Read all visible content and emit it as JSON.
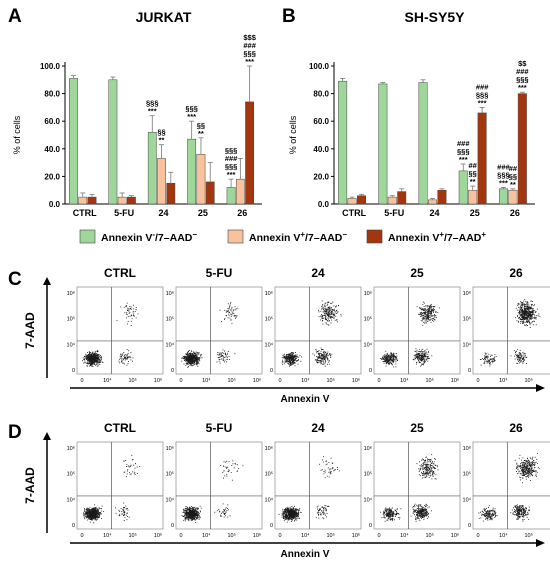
{
  "colors": {
    "green": "#9fd79a",
    "peach": "#f8c29e",
    "brown": "#a3350f",
    "error": "#777777",
    "dot": "#1a1a1a"
  },
  "panels": {
    "A": "A",
    "B": "B",
    "C": "C",
    "D": "D"
  },
  "chart_data": [
    {
      "panel": "A",
      "type": "bar",
      "title": "JURKAT",
      "ylabel": "% of cells",
      "ylim": [
        0,
        100
      ],
      "yticks": [
        "0.0",
        "20.0",
        "40.0",
        "60.0",
        "80.0",
        "100.0"
      ],
      "categories": [
        "CTRL",
        "5-FU",
        "24",
        "25",
        "26"
      ],
      "series": [
        {
          "name": "Annexin V⁻/7–AAD⁻",
          "values": [
            91,
            90,
            52,
            47,
            12
          ],
          "errors": [
            2,
            2,
            12,
            13,
            6
          ]
        },
        {
          "name": "Annexin V⁺/7–AAD⁻",
          "values": [
            5,
            5,
            33,
            36,
            18
          ],
          "errors": [
            3,
            3,
            10,
            12,
            15
          ]
        },
        {
          "name": "Annexin V⁺/7–AAD⁺",
          "values": [
            5,
            5,
            15,
            16,
            74
          ],
          "errors": [
            2,
            1,
            8,
            14,
            26
          ]
        }
      ],
      "annotations": [
        {
          "category": "24",
          "series": 0,
          "lines": [
            "§§§",
            "***"
          ]
        },
        {
          "category": "24",
          "series": 1,
          "lines": [
            "§§",
            "**"
          ]
        },
        {
          "category": "25",
          "series": 0,
          "lines": [
            "§§§",
            "***"
          ]
        },
        {
          "category": "25",
          "series": 1,
          "lines": [
            "§§",
            "**"
          ]
        },
        {
          "category": "26",
          "series": 0,
          "lines": [
            "§§§",
            "###",
            "§§§",
            "***"
          ]
        },
        {
          "category": "26",
          "series": 2,
          "lines": [
            "$$$",
            "###",
            "§§§",
            "***"
          ]
        }
      ]
    },
    {
      "panel": "B",
      "type": "bar",
      "title": "SH-SY5Y",
      "ylabel": "% of cells",
      "ylim": [
        0,
        100
      ],
      "yticks": [
        "0.0",
        "20.0",
        "40.0",
        "60.0",
        "80.0",
        "100.0"
      ],
      "categories": [
        "CTRL",
        "5-FU",
        "24",
        "25",
        "26"
      ],
      "series": [
        {
          "name": "Annexin V⁻/7–AAD⁻",
          "values": [
            89,
            87,
            88,
            24,
            11
          ],
          "errors": [
            2,
            1,
            2,
            5,
            1
          ]
        },
        {
          "name": "Annexin V⁺/7–AAD⁻",
          "values": [
            4,
            5,
            3,
            10,
            10
          ],
          "errors": [
            1,
            1,
            1,
            3,
            1
          ]
        },
        {
          "name": "Annexin V⁺/7–AAD⁺",
          "values": [
            6,
            9,
            10,
            66,
            80
          ],
          "errors": [
            1,
            2,
            1,
            4,
            1
          ]
        }
      ],
      "annotations": [
        {
          "category": "25",
          "series": 0,
          "lines": [
            "###",
            "§§§",
            "***"
          ]
        },
        {
          "category": "25",
          "series": 1,
          "lines": [
            "##",
            "§§",
            "**"
          ]
        },
        {
          "category": "25",
          "series": 2,
          "lines": [
            "###",
            "§§§",
            "***"
          ]
        },
        {
          "category": "26",
          "series": 0,
          "lines": [
            "###",
            "§§§",
            "***"
          ]
        },
        {
          "category": "26",
          "series": 1,
          "lines": [
            "##",
            "§§",
            "**"
          ]
        },
        {
          "category": "26",
          "series": 2,
          "lines": [
            "$$",
            "###",
            "§§§",
            "***"
          ]
        }
      ]
    },
    {
      "panel": "C",
      "type": "scatter",
      "ylabel": "7-AAD",
      "xlabel": "Annexin V",
      "plots": [
        "CTRL",
        "5-FU",
        "24",
        "25",
        "26"
      ],
      "x_ticks": [
        "0",
        "10⁴",
        "10⁵",
        "10⁶"
      ],
      "y_ticks": [
        "0",
        "10⁴",
        "10⁵",
        "10⁶"
      ]
    },
    {
      "panel": "D",
      "type": "scatter",
      "ylabel": "7-AAD",
      "xlabel": "Annexin V",
      "plots": [
        "CTRL",
        "5-FU",
        "24",
        "25",
        "26"
      ],
      "x_ticks": [
        "0",
        "10⁴",
        "10⁵",
        "10⁶"
      ],
      "y_ticks": [
        "0",
        "10⁴",
        "10⁵",
        "10⁶"
      ]
    }
  ],
  "legend": [
    {
      "prefix": "Annexin V",
      "sup1": "-",
      "mid": "/7–AAD",
      "sup2": "−"
    },
    {
      "prefix": "Annexin V",
      "sup1": "+",
      "mid": "/7–AAD",
      "sup2": "−"
    },
    {
      "prefix": "Annexin V",
      "sup1": "+",
      "mid": "/7–AAD",
      "sup2": "+"
    }
  ]
}
